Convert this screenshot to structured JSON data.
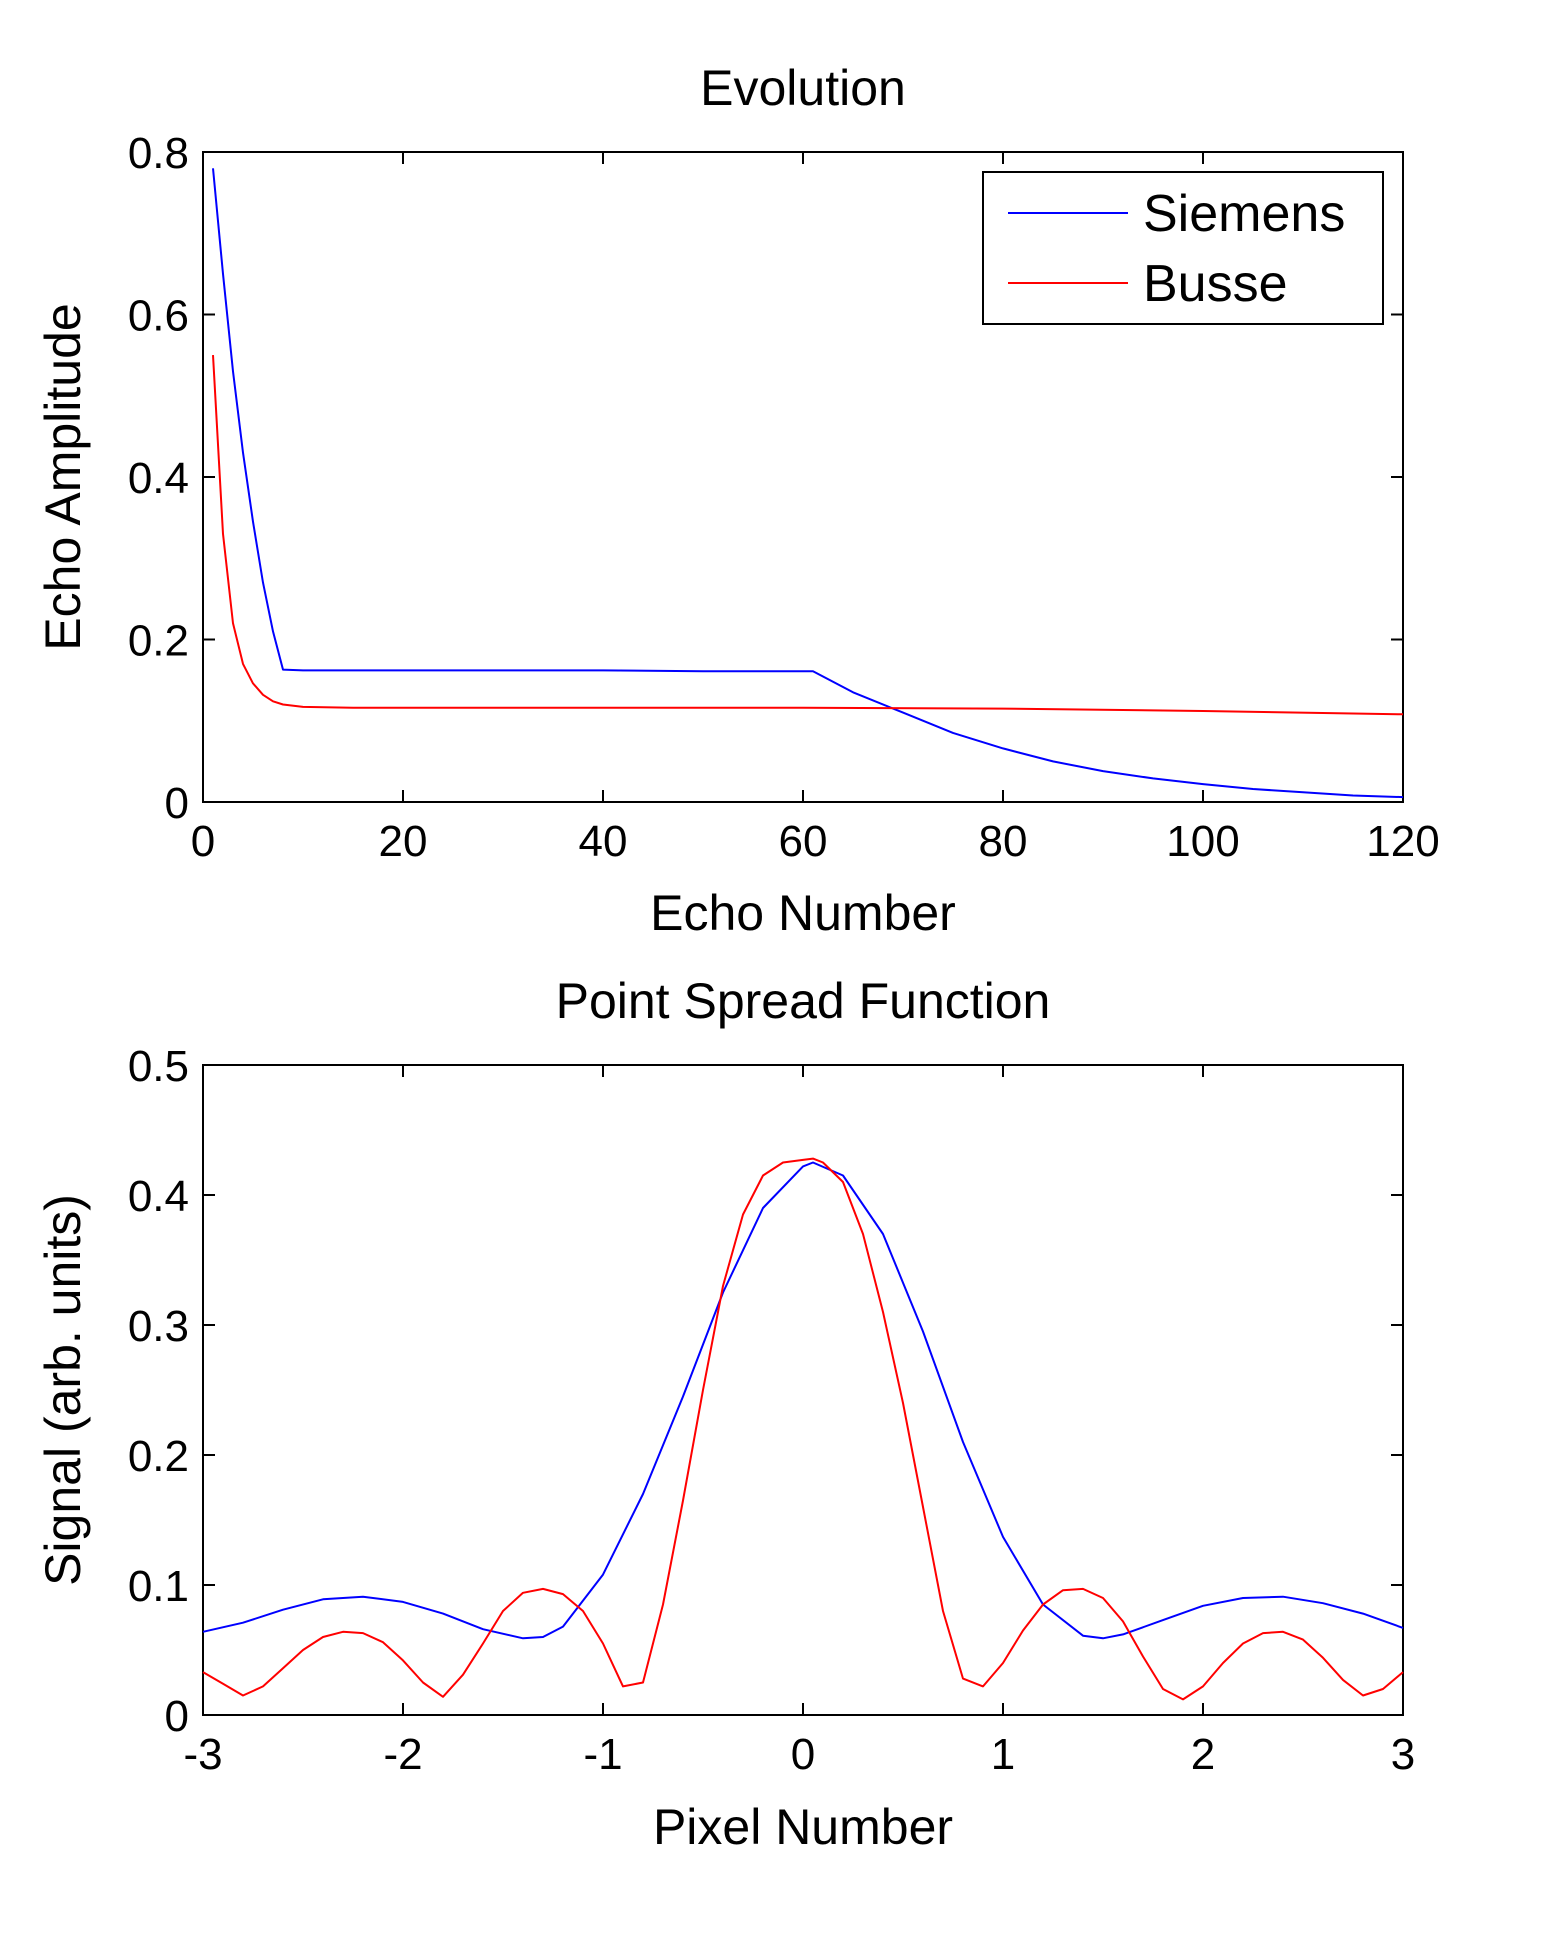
{
  "chart_data": [
    {
      "type": "line",
      "title": "Evolution",
      "xlabel": "Echo Number",
      "ylabel": "Echo Amplitude",
      "xlim": [
        0,
        120
      ],
      "ylim": [
        0,
        0.8
      ],
      "xticks": [
        0,
        20,
        40,
        60,
        80,
        100,
        120
      ],
      "yticks": [
        0,
        0.2,
        0.4,
        0.6,
        0.8
      ],
      "xtick_labels": [
        "0",
        "20",
        "40",
        "60",
        "80",
        "100",
        "120"
      ],
      "ytick_labels": [
        "0",
        "0.2",
        "0.4",
        "0.6",
        "0.8"
      ],
      "grid": false,
      "legend": "top-right",
      "series": [
        {
          "name": "Siemens",
          "color": "#0000ff",
          "x": [
            1,
            2,
            3,
            4,
            5,
            6,
            7,
            8,
            10,
            20,
            30,
            40,
            50,
            61,
            65,
            70,
            75,
            80,
            85,
            90,
            95,
            100,
            105,
            110,
            115,
            120
          ],
          "y": [
            0.78,
            0.65,
            0.53,
            0.43,
            0.345,
            0.27,
            0.21,
            0.163,
            0.162,
            0.162,
            0.162,
            0.162,
            0.161,
            0.161,
            0.135,
            0.11,
            0.085,
            0.066,
            0.05,
            0.038,
            0.029,
            0.022,
            0.016,
            0.012,
            0.008,
            0.006
          ]
        },
        {
          "name": "Busse",
          "color": "#ff0000",
          "x": [
            1,
            2,
            3,
            4,
            5,
            6,
            7,
            8,
            10,
            15,
            20,
            40,
            60,
            80,
            100,
            120
          ],
          "y": [
            0.55,
            0.33,
            0.22,
            0.17,
            0.146,
            0.132,
            0.124,
            0.12,
            0.117,
            0.116,
            0.116,
            0.116,
            0.116,
            0.115,
            0.112,
            0.108
          ]
        }
      ]
    },
    {
      "type": "line",
      "title": "Point Spread Function",
      "xlabel": "Pixel Number",
      "ylabel": "Signal (arb. units)",
      "xlim": [
        -3,
        3
      ],
      "ylim": [
        0,
        0.5
      ],
      "xticks": [
        -3,
        -2,
        -1,
        0,
        1,
        2,
        3
      ],
      "yticks": [
        0,
        0.1,
        0.2,
        0.3,
        0.4,
        0.5
      ],
      "xtick_labels": [
        "-3",
        "-2",
        "-1",
        "0",
        "1",
        "2",
        "3"
      ],
      "ytick_labels": [
        "0",
        "0.1",
        "0.2",
        "0.3",
        "0.4",
        "0.5"
      ],
      "grid": false,
      "series": [
        {
          "color": "#0000ff",
          "x": [
            -3.0,
            -2.8,
            -2.6,
            -2.4,
            -2.2,
            -2.0,
            -1.8,
            -1.6,
            -1.4,
            -1.3,
            -1.2,
            -1.0,
            -0.8,
            -0.6,
            -0.4,
            -0.2,
            0.0,
            0.05,
            0.2,
            0.4,
            0.6,
            0.8,
            1.0,
            1.2,
            1.4,
            1.5,
            1.6,
            1.8,
            2.0,
            2.2,
            2.4,
            2.6,
            2.8,
            3.0
          ],
          "y": [
            0.064,
            0.071,
            0.081,
            0.089,
            0.091,
            0.087,
            0.078,
            0.066,
            0.059,
            0.06,
            0.068,
            0.108,
            0.17,
            0.245,
            0.325,
            0.39,
            0.422,
            0.425,
            0.415,
            0.37,
            0.295,
            0.21,
            0.137,
            0.085,
            0.061,
            0.059,
            0.062,
            0.073,
            0.084,
            0.09,
            0.091,
            0.086,
            0.078,
            0.067
          ]
        },
        {
          "color": "#ff0000",
          "x": [
            -3.0,
            -2.9,
            -2.8,
            -2.7,
            -2.6,
            -2.5,
            -2.4,
            -2.3,
            -2.2,
            -2.1,
            -2.0,
            -1.9,
            -1.8,
            -1.7,
            -1.6,
            -1.5,
            -1.4,
            -1.3,
            -1.2,
            -1.1,
            -1.0,
            -0.9,
            -0.8,
            -0.7,
            -0.6,
            -0.5,
            -0.4,
            -0.3,
            -0.2,
            -0.1,
            0.0,
            0.05,
            0.1,
            0.2,
            0.3,
            0.4,
            0.5,
            0.6,
            0.7,
            0.8,
            0.9,
            1.0,
            1.1,
            1.2,
            1.3,
            1.4,
            1.5,
            1.6,
            1.7,
            1.8,
            1.9,
            2.0,
            2.1,
            2.2,
            2.3,
            2.4,
            2.5,
            2.6,
            2.7,
            2.8,
            2.9,
            3.0
          ],
          "y": [
            0.033,
            0.024,
            0.015,
            0.022,
            0.036,
            0.05,
            0.06,
            0.064,
            0.063,
            0.056,
            0.042,
            0.025,
            0.014,
            0.031,
            0.055,
            0.08,
            0.094,
            0.097,
            0.093,
            0.08,
            0.055,
            0.022,
            0.025,
            0.085,
            0.165,
            0.25,
            0.33,
            0.385,
            0.415,
            0.425,
            0.427,
            0.428,
            0.425,
            0.41,
            0.37,
            0.31,
            0.24,
            0.16,
            0.08,
            0.028,
            0.022,
            0.04,
            0.065,
            0.085,
            0.096,
            0.097,
            0.09,
            0.072,
            0.045,
            0.02,
            0.012,
            0.022,
            0.04,
            0.055,
            0.063,
            0.064,
            0.058,
            0.044,
            0.027,
            0.015,
            0.02,
            0.033
          ]
        }
      ]
    }
  ]
}
